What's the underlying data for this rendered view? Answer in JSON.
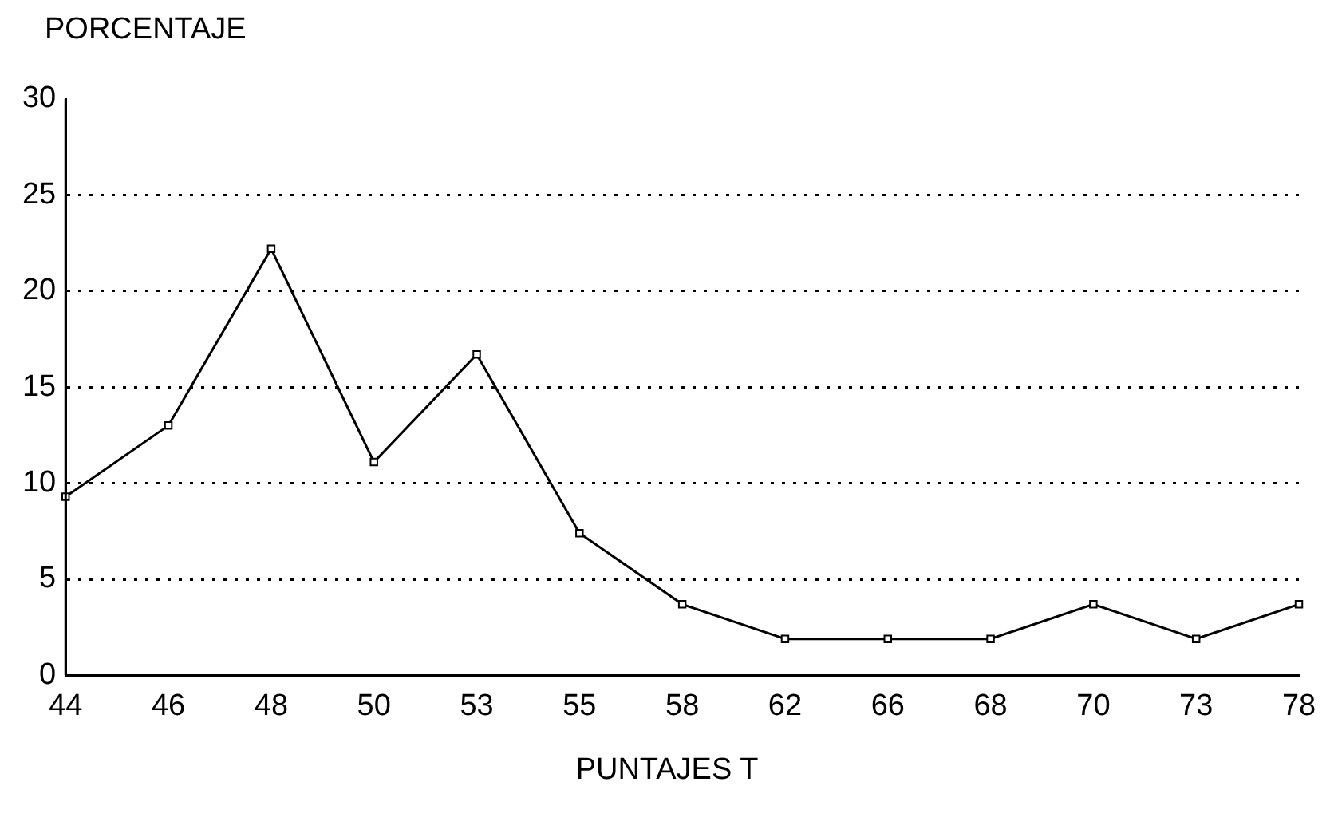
{
  "chart_data": {
    "type": "line",
    "xlabel": "PUNTAJES T",
    "ylabel": "PORCENTAJE",
    "categories": [
      "44",
      "46",
      "48",
      "50",
      "53",
      "55",
      "58",
      "62",
      "66",
      "68",
      "70",
      "73",
      "78"
    ],
    "series": [
      {
        "color": "#000000",
        "values": [
          9.3,
          13,
          22.2,
          11.1,
          16.7,
          7.4,
          3.7,
          1.9,
          1.9,
          1.9,
          3.7,
          1.9,
          3.7
        ]
      }
    ],
    "ylim": [
      0,
      30
    ],
    "yticks": [
      0,
      5,
      10,
      15,
      20,
      25,
      30
    ],
    "grid": "y",
    "marker": "square",
    "line_style": "solid",
    "legend": false
  }
}
